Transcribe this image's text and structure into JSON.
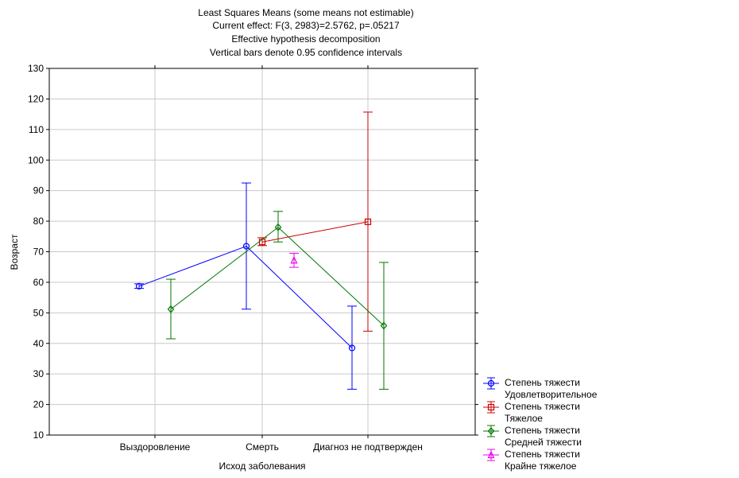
{
  "chart_data": {
    "type": "line",
    "title": [
      "Least Squares Means (some means not estimable)",
      "Current effect: F(3, 2983)=2.5762, p=.05217",
      "Effective hypothesis decomposition",
      "Vertical bars denote 0.95 confidence intervals"
    ],
    "xlabel": "Исход заболевания",
    "ylabel": "Возраст",
    "categories": [
      "Выздоровление",
      "Смерть",
      "Диагноз не подтвержден"
    ],
    "ylim": [
      10,
      130
    ],
    "yticks": [
      10,
      20,
      30,
      40,
      50,
      60,
      70,
      80,
      90,
      100,
      110,
      120,
      130
    ],
    "grid": true,
    "legend_position": "bottom-right",
    "series": [
      {
        "name": [
          "Степень тяжести",
          "Удовлетворительное"
        ],
        "color": "#0000ff",
        "marker": "circle",
        "offset": -1,
        "points": [
          {
            "category": "Выздоровление",
            "mean": 58.7,
            "lower": 58.0,
            "upper": 59.5
          },
          {
            "category": "Смерть",
            "mean": 71.8,
            "lower": 51.2,
            "upper": 92.5
          },
          {
            "category": "Диагноз не подтвержден",
            "mean": 38.5,
            "lower": 25.0,
            "upper": 52.2
          }
        ]
      },
      {
        "name": [
          "Степень тяжести",
          "Тяжелое"
        ],
        "color": "#cc0000",
        "marker": "square",
        "offset": 0,
        "points": [
          {
            "category": "Смерть",
            "mean": 73.2,
            "lower": 72.0,
            "upper": 74.6
          },
          {
            "category": "Диагноз не подтвержден",
            "mean": 79.8,
            "lower": 44.0,
            "upper": 115.7
          }
        ]
      },
      {
        "name": [
          "Степень тяжести",
          "Средней тяжести"
        ],
        "color": "#007700",
        "marker": "diamond",
        "offset": 1,
        "points": [
          {
            "category": "Выздоровление",
            "mean": 51.2,
            "lower": 41.5,
            "upper": 61.0
          },
          {
            "category": "Смерть",
            "mean": 78.0,
            "lower": 73.2,
            "upper": 83.2
          },
          {
            "category": "Диагноз не подтвержден",
            "mean": 45.8,
            "lower": 25.0,
            "upper": 66.5
          }
        ]
      },
      {
        "name": [
          "Степень тяжести",
          "Крайне тяжелое"
        ],
        "color": "#ee00ee",
        "marker": "triangle",
        "offset": 2,
        "points": [
          {
            "category": "Смерть",
            "mean": 67.2,
            "lower": 64.9,
            "upper": 69.5
          }
        ]
      }
    ]
  }
}
